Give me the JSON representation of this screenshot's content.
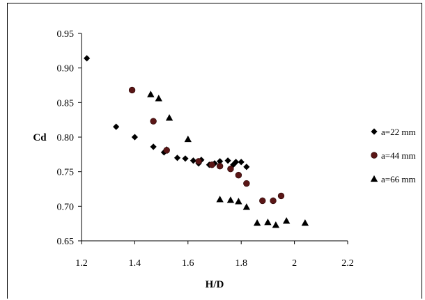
{
  "chart_data": {
    "type": "scatter",
    "title": "",
    "xlabel": "H/D",
    "ylabel": "Cd",
    "xlim": [
      1.2,
      2.2
    ],
    "ylim": [
      0.65,
      0.95
    ],
    "x_ticks": [
      "1.2",
      "1.4",
      "1.6",
      "1.8",
      "2",
      "2.2"
    ],
    "y_ticks": [
      "0.65",
      "0.70",
      "0.75",
      "0.80",
      "0.85",
      "0.90",
      "0.95"
    ],
    "grid": false,
    "legend_position": "right",
    "series": [
      {
        "name": "a=22 mm",
        "marker": "diamond",
        "color": "#000000",
        "points": [
          [
            1.22,
            0.914
          ],
          [
            1.33,
            0.815
          ],
          [
            1.4,
            0.8
          ],
          [
            1.47,
            0.786
          ],
          [
            1.51,
            0.778
          ],
          [
            1.52,
            0.782
          ],
          [
            1.56,
            0.77
          ],
          [
            1.59,
            0.769
          ],
          [
            1.62,
            0.766
          ],
          [
            1.64,
            0.762
          ],
          [
            1.65,
            0.767
          ],
          [
            1.68,
            0.76
          ],
          [
            1.7,
            0.762
          ],
          [
            1.72,
            0.765
          ],
          [
            1.75,
            0.766
          ],
          [
            1.77,
            0.76
          ],
          [
            1.78,
            0.764
          ],
          [
            1.8,
            0.764
          ],
          [
            1.82,
            0.757
          ]
        ]
      },
      {
        "name": "a=44 mm",
        "marker": "circle",
        "color": "#5a1616",
        "points": [
          [
            1.39,
            0.868
          ],
          [
            1.47,
            0.823
          ],
          [
            1.52,
            0.781
          ],
          [
            1.64,
            0.765
          ],
          [
            1.69,
            0.76
          ],
          [
            1.72,
            0.758
          ],
          [
            1.76,
            0.754
          ],
          [
            1.79,
            0.745
          ],
          [
            1.82,
            0.733
          ],
          [
            1.88,
            0.708
          ],
          [
            1.92,
            0.708
          ],
          [
            1.95,
            0.715
          ]
        ]
      },
      {
        "name": "a=66 mm",
        "marker": "triangle",
        "color": "#000000",
        "points": [
          [
            1.46,
            0.862
          ],
          [
            1.49,
            0.856
          ],
          [
            1.53,
            0.828
          ],
          [
            1.6,
            0.797
          ],
          [
            1.72,
            0.71
          ],
          [
            1.76,
            0.709
          ],
          [
            1.79,
            0.707
          ],
          [
            1.82,
            0.699
          ],
          [
            1.86,
            0.676
          ],
          [
            1.9,
            0.677
          ],
          [
            1.93,
            0.673
          ],
          [
            1.97,
            0.679
          ],
          [
            2.04,
            0.676
          ]
        ]
      }
    ]
  }
}
